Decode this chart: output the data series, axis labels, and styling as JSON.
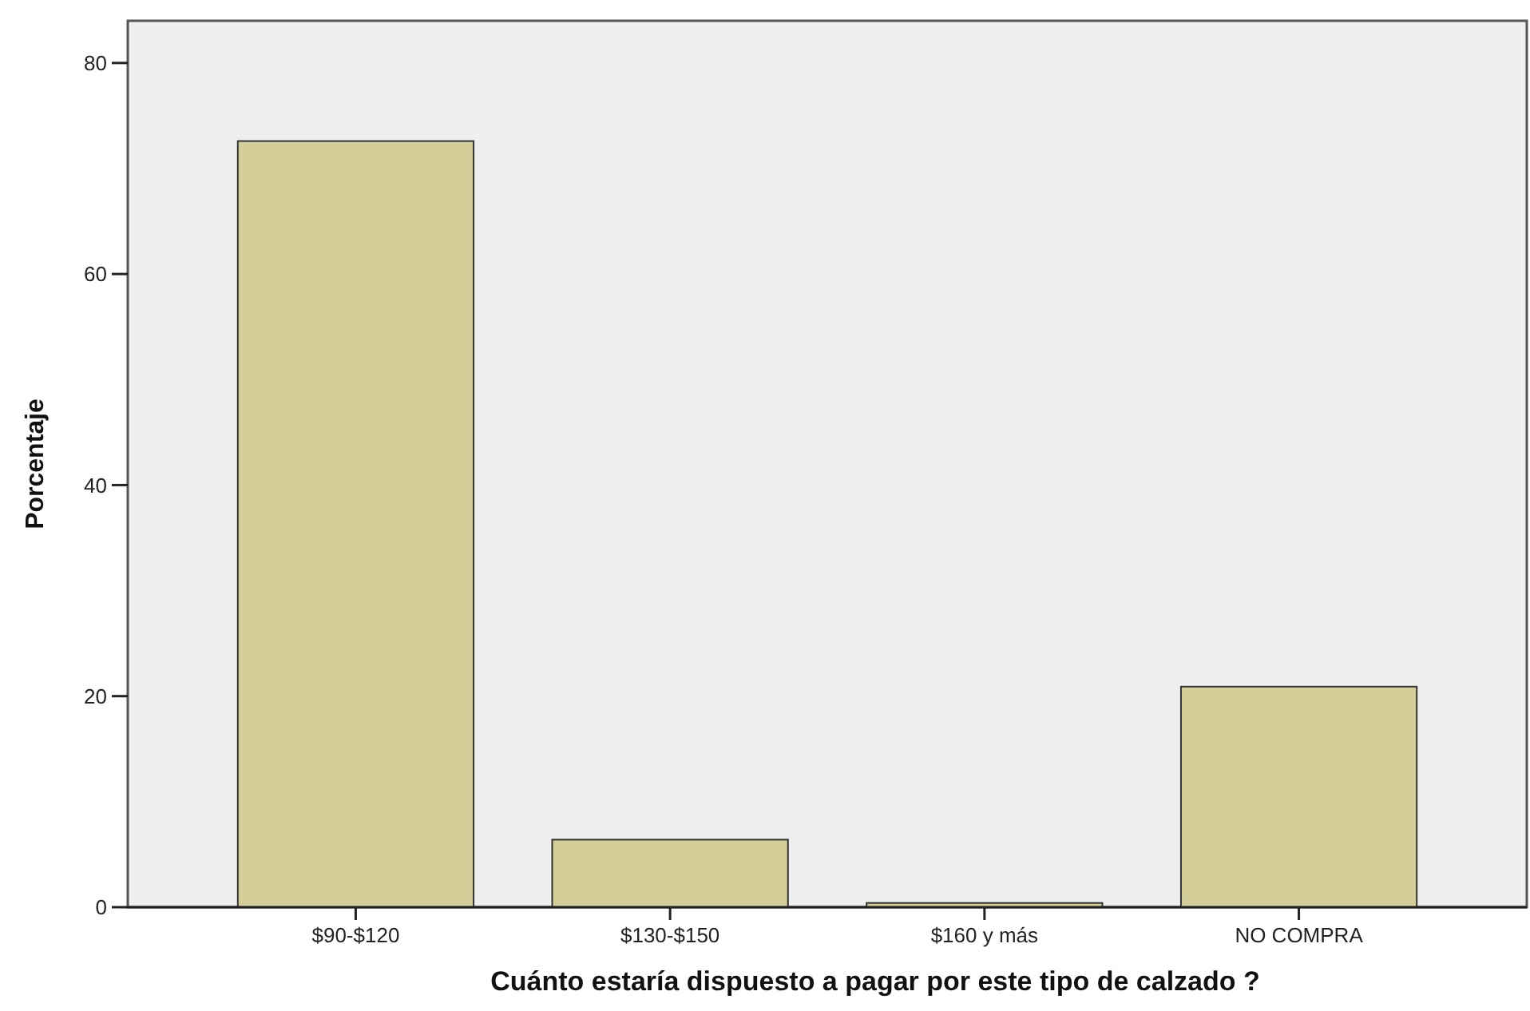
{
  "chart_data": {
    "type": "bar",
    "xlabel": "Cuánto estaría dispuesto a pagar por este tipo de calzado ?",
    "ylabel": "Porcentaje",
    "categories": [
      "$90-$120",
      "$130-$150",
      "$160 y más",
      "NO COMPRA"
    ],
    "values": [
      72.6,
      6.4,
      0.4,
      20.9
    ],
    "color": "#d3ce97",
    "ylim": [
      0,
      84
    ],
    "yticks": [
      0,
      20,
      40,
      60,
      80
    ],
    "grid": false
  }
}
